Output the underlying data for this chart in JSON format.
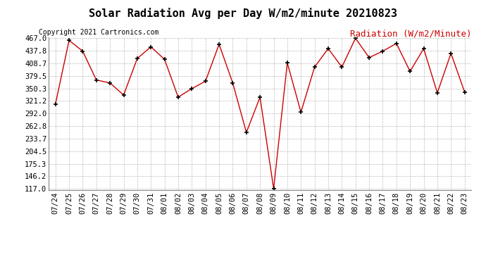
{
  "title": "Solar Radiation Avg per Day W/m2/minute 20210823",
  "copyright": "Copyright 2021 Cartronics.com",
  "legend_label": "Radiation (W/m2/Minute)",
  "labels": [
    "07/24",
    "07/25",
    "07/26",
    "07/27",
    "07/28",
    "07/29",
    "07/30",
    "07/31",
    "08/01",
    "08/02",
    "08/03",
    "08/04",
    "08/05",
    "08/06",
    "08/07",
    "08/08",
    "08/09",
    "08/10",
    "08/11",
    "08/12",
    "08/13",
    "08/14",
    "08/15",
    "08/16",
    "08/17",
    "08/18",
    "08/19",
    "08/20",
    "08/21",
    "08/22",
    "08/23"
  ],
  "values": [
    314,
    462,
    437,
    370,
    363,
    335,
    420,
    447,
    418,
    330,
    350,
    367,
    453,
    363,
    248,
    330,
    117,
    410,
    295,
    400,
    443,
    400,
    467,
    422,
    437,
    455,
    390,
    443,
    340,
    432,
    342
  ],
  "y_ticks": [
    117.0,
    146.2,
    175.3,
    204.5,
    233.7,
    262.8,
    292.0,
    321.2,
    350.3,
    379.5,
    408.7,
    437.8,
    467.0
  ],
  "y_min": 117.0,
  "y_max": 467.0,
  "line_color": "#cc0000",
  "marker_color": "#000000",
  "bg_color": "#ffffff",
  "grid_color": "#bbbbbb",
  "title_fontsize": 11,
  "copyright_fontsize": 7,
  "legend_color": "#cc0000",
  "legend_fontsize": 9,
  "tick_fontsize": 7.5
}
